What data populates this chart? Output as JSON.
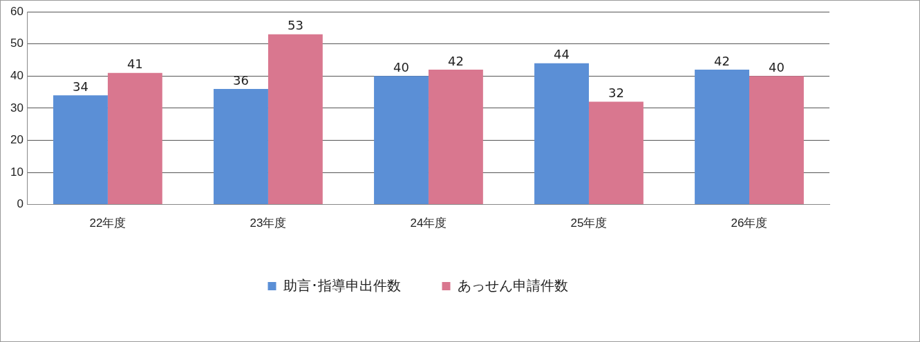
{
  "chart_data": {
    "type": "bar",
    "categories": [
      "22年度",
      "23年度",
      "24年度",
      "25年度",
      "26年度"
    ],
    "series": [
      {
        "name": "助言･指導申出件数",
        "color": "#5b8fd6",
        "values": [
          34,
          36,
          40,
          44,
          42
        ]
      },
      {
        "name": "あっせん申請件数",
        "color": "#d9778f",
        "values": [
          41,
          53,
          42,
          32,
          40
        ]
      }
    ],
    "ylim": [
      0,
      60
    ],
    "yticks": [
      0,
      10,
      20,
      30,
      40,
      50,
      60
    ],
    "grid": "y",
    "legend": "bottom",
    "data_labels": true
  }
}
